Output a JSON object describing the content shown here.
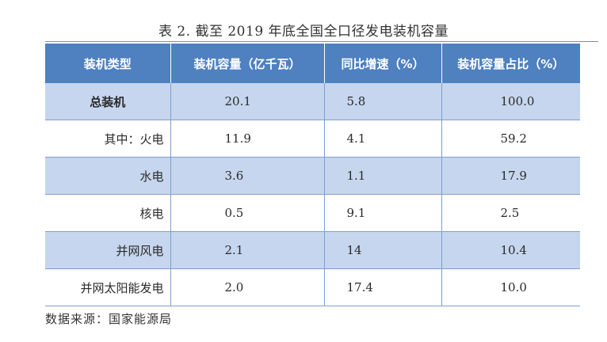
{
  "title": "表 2. 截至 2019 年底全国全口径发电装机容量",
  "table": {
    "headers": [
      "装机类型",
      "装机容量（亿千瓦）",
      "同比增速（%）",
      "装机容量占比（%）"
    ],
    "rows": [
      {
        "type": "总装机",
        "capacity": "20.1",
        "growth": "5.8",
        "share": "100.0"
      },
      {
        "type": "其中：火电",
        "capacity": "11.9",
        "growth": "4.1",
        "share": "59.2"
      },
      {
        "type": "水电",
        "capacity": "3.6",
        "growth": "1.1",
        "share": "17.9"
      },
      {
        "type": "核电",
        "capacity": "0.5",
        "growth": "9.1",
        "share": "2.5"
      },
      {
        "type": "并网风电",
        "capacity": "2.1",
        "growth": "14",
        "share": "10.4"
      },
      {
        "type": "并网太阳能发电",
        "capacity": "2.0",
        "growth": "17.4",
        "share": "10.0"
      }
    ]
  },
  "source": "数据来源：国家能源局",
  "colors": {
    "header_bg": "#4f80c0",
    "shaded_row": "#c6d6ee",
    "grid": "#7f9fce"
  }
}
